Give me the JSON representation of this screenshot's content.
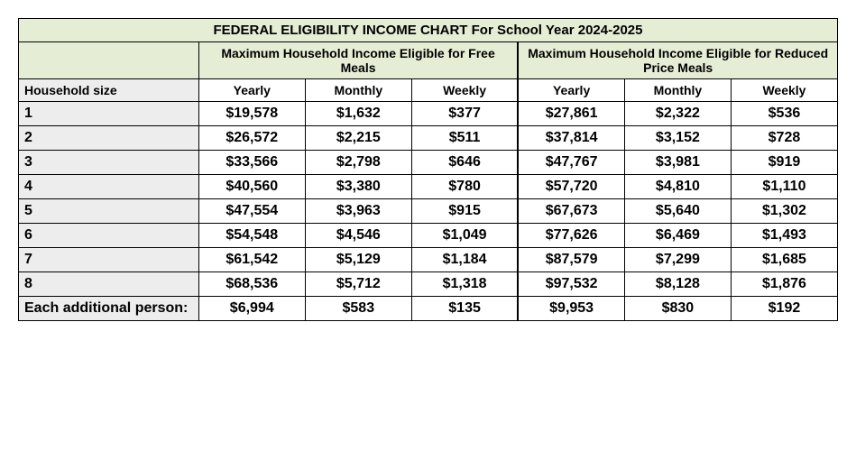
{
  "title": "FEDERAL ELIGIBILITY INCOME CHART For School Year 2024-2025",
  "group1_header": "Maximum Household Income Eligible for Free Meals",
  "group2_header": "Maximum Household Income Eligible for Reduced Price Meals",
  "col_label": "Household size",
  "col_yearly": "Yearly",
  "col_monthly": "Monthly",
  "col_weekly": "Weekly",
  "rows": [
    {
      "label": "1",
      "f_y": "$19,578",
      "f_m": "$1,632",
      "f_w": "$377",
      "r_y": "$27,861",
      "r_m": "$2,322",
      "r_w": "$536"
    },
    {
      "label": "2",
      "f_y": "$26,572",
      "f_m": "$2,215",
      "f_w": "$511",
      "r_y": "$37,814",
      "r_m": "$3,152",
      "r_w": "$728"
    },
    {
      "label": "3",
      "f_y": "$33,566",
      "f_m": "$2,798",
      "f_w": "$646",
      "r_y": "$47,767",
      "r_m": "$3,981",
      "r_w": "$919"
    },
    {
      "label": "4",
      "f_y": "$40,560",
      "f_m": "$3,380",
      "f_w": "$780",
      "r_y": "$57,720",
      "r_m": "$4,810",
      "r_w": "$1,110"
    },
    {
      "label": "5",
      "f_y": "$47,554",
      "f_m": "$3,963",
      "f_w": "$915",
      "r_y": "$67,673",
      "r_m": "$5,640",
      "r_w": "$1,302"
    },
    {
      "label": "6",
      "f_y": "$54,548",
      "f_m": "$4,546",
      "f_w": "$1,049",
      "r_y": "$77,626",
      "r_m": "$6,469",
      "r_w": "$1,493"
    },
    {
      "label": "7",
      "f_y": "$61,542",
      "f_m": "$5,129",
      "f_w": "$1,184",
      "r_y": "$87,579",
      "r_m": "$7,299",
      "r_w": "$1,685"
    },
    {
      "label": "8",
      "f_y": "$68,536",
      "f_m": "$5,712",
      "f_w": "$1,318",
      "r_y": "$97,532",
      "r_m": "$8,128",
      "r_w": "$1,876"
    },
    {
      "label": "Each additional person:",
      "f_y": "$6,994",
      "f_m": "$583",
      "f_w": "$135",
      "r_y": "$9,953",
      "r_m": "$830",
      "r_w": "$192"
    }
  ]
}
